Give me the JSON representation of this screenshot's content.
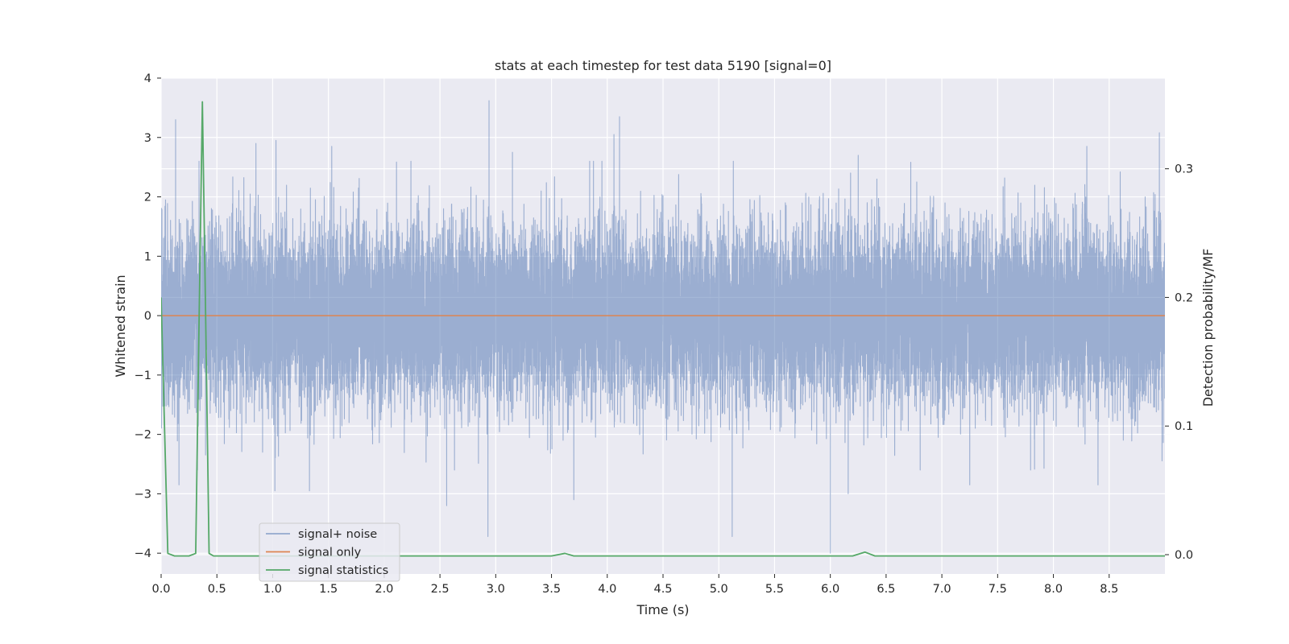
{
  "chart_data": {
    "type": "line",
    "title": "stats at each timestep for test data 5190 [signal=0]",
    "xlabel": "Time (s)",
    "ylabel": "Whitened strain",
    "ylabel_right": "Detection probability/MF",
    "xlim": [
      0,
      9
    ],
    "ylim": [
      -4.35,
      4.0
    ],
    "ylim_right": [
      -0.015,
      0.3705
    ],
    "x_ticks": [
      0.0,
      0.5,
      1.0,
      1.5,
      2.0,
      2.5,
      3.0,
      3.5,
      4.0,
      4.5,
      5.0,
      5.5,
      6.0,
      6.5,
      7.0,
      7.5,
      8.0,
      8.5
    ],
    "x_tick_labels": [
      "0.0",
      "0.5",
      "1.0",
      "1.5",
      "2.0",
      "2.5",
      "3.0",
      "3.5",
      "4.0",
      "4.5",
      "5.0",
      "5.5",
      "6.0",
      "6.5",
      "7.0",
      "7.5",
      "8.0",
      "8.5"
    ],
    "y_ticks": [
      4,
      3,
      2,
      1,
      0,
      -1,
      -2,
      -3,
      -4
    ],
    "y_tick_labels": [
      "4",
      "3",
      "2",
      "1",
      "0",
      "−1",
      "−2",
      "−3",
      "−4"
    ],
    "y_ticks_right": [
      0.3,
      0.2,
      0.1,
      0.0
    ],
    "y_tick_labels_right": [
      "0.3",
      "0.2",
      "0.1",
      "0.0"
    ],
    "grid": true,
    "legend_position": "lower-left",
    "series": [
      {
        "name": "signal+ noise",
        "color": "#4c72b0",
        "axis": "left",
        "kind": "noise",
        "sample_rate": 2048,
        "duration": 9,
        "std": 0.72,
        "peaks": [
          {
            "x": 0.13,
            "y": 3.3
          },
          {
            "x": 0.85,
            "y": 2.9
          },
          {
            "x": 1.03,
            "y": 2.95
          },
          {
            "x": 1.53,
            "y": 2.85
          },
          {
            "x": 2.94,
            "y": 3.62
          },
          {
            "x": 3.15,
            "y": 2.75
          },
          {
            "x": 4.11,
            "y": 3.35
          },
          {
            "x": 4.06,
            "y": 3.05
          },
          {
            "x": 6.25,
            "y": 2.7
          },
          {
            "x": 8.3,
            "y": 2.85
          },
          {
            "x": 8.95,
            "y": 3.08
          },
          {
            "x": 0.16,
            "y": -2.85
          },
          {
            "x": 1.02,
            "y": -2.95
          },
          {
            "x": 1.33,
            "y": -2.95
          },
          {
            "x": 2.56,
            "y": -3.2
          },
          {
            "x": 2.93,
            "y": -3.72
          },
          {
            "x": 3.7,
            "y": -3.1
          },
          {
            "x": 5.12,
            "y": -3.72
          },
          {
            "x": 6.0,
            "y": -4.0
          },
          {
            "x": 6.16,
            "y": -3.0
          },
          {
            "x": 7.25,
            "y": -2.85
          },
          {
            "x": 8.4,
            "y": -2.85
          }
        ]
      },
      {
        "name": "signal only",
        "color": "#dd8452",
        "axis": "left",
        "x": [
          0,
          9
        ],
        "y": [
          0,
          0
        ]
      },
      {
        "name": "signal statistics",
        "color": "#55a868",
        "axis": "right",
        "x": [
          0.0,
          0.06,
          0.12,
          0.19,
          0.25,
          0.31,
          0.34,
          0.37,
          0.4,
          0.43,
          0.47,
          0.6,
          0.8,
          1.0,
          3.5,
          3.62,
          3.7,
          5.3,
          5.4,
          6.2,
          6.31,
          6.4,
          9.0
        ],
        "y": [
          0.2,
          0.001,
          -0.001,
          -0.001,
          -0.001,
          0.001,
          0.18,
          0.352,
          0.18,
          0.001,
          -0.001,
          -0.001,
          -0.001,
          -0.001,
          -0.001,
          0.001,
          -0.001,
          -0.001,
          -0.001,
          -0.001,
          0.002,
          -0.001,
          -0.001
        ]
      }
    ]
  }
}
